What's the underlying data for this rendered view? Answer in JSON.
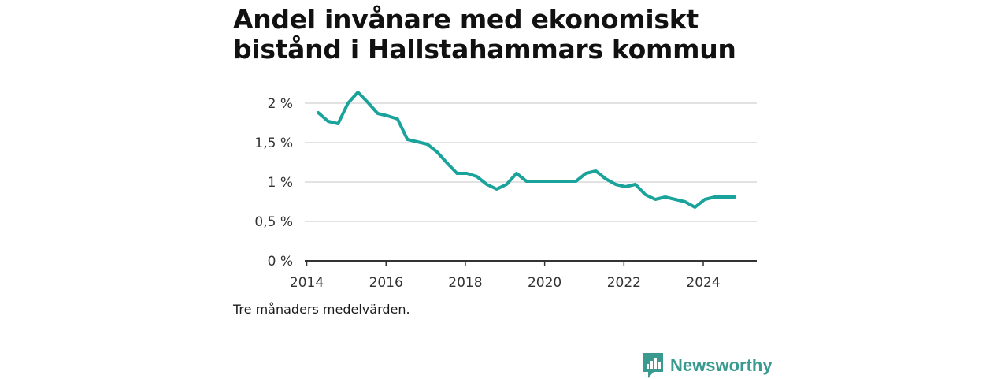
{
  "title": "Andel invånare med ekonomiskt bistånd i Hallstahammars kommun",
  "note": "Tre månaders medelvärden.",
  "brand": {
    "name": "Newsworthy",
    "icon": "newsworthy-logo-icon",
    "color": "#3a9a90"
  },
  "chart_data": {
    "type": "line",
    "title": "Andel invånare med ekonomiskt bistånd i Hallstahammars kommun",
    "xlabel": "",
    "ylabel": "",
    "xlim": [
      2013.95,
      2025.35
    ],
    "ylim": [
      0,
      2
    ],
    "x_ticks": [
      2014,
      2016,
      2018,
      2020,
      2022,
      2024
    ],
    "x_tick_labels": [
      "2014",
      "2016",
      "2018",
      "2020",
      "2022",
      "2024"
    ],
    "y_ticks": [
      0,
      0.5,
      1,
      1.5,
      2
    ],
    "y_tick_labels": [
      "0 %",
      "0,5 %",
      "1 %",
      "1,5 %",
      "2 %"
    ],
    "grid": true,
    "line_color": "#1aa39a",
    "series": [
      {
        "x": [
          2014.29,
          2014.54,
          2014.79,
          2015.04,
          2015.29,
          2015.54,
          2015.79,
          2016.04,
          2016.29,
          2016.54,
          2016.79,
          2017.04,
          2017.29,
          2017.54,
          2017.79,
          2018.04,
          2018.29,
          2018.54,
          2018.79,
          2019.04,
          2019.29,
          2019.54,
          2019.79,
          2020.04,
          2020.29,
          2020.54,
          2020.79,
          2021.04,
          2021.29,
          2021.54,
          2021.79,
          2022.04,
          2022.29,
          2022.54,
          2022.79,
          2023.04,
          2023.29,
          2023.54,
          2023.79,
          2024.04,
          2024.29,
          2024.54,
          2024.79
        ],
        "values": [
          1.88,
          1.77,
          1.74,
          2.0,
          2.14,
          2.01,
          1.87,
          1.84,
          1.8,
          1.54,
          1.51,
          1.48,
          1.38,
          1.24,
          1.11,
          1.11,
          1.07,
          0.97,
          0.91,
          0.97,
          1.11,
          1.01,
          1.01,
          1.01,
          1.01,
          1.01,
          1.01,
          1.11,
          1.14,
          1.04,
          0.97,
          0.94,
          0.97,
          0.84,
          0.78,
          0.81,
          0.78,
          0.75,
          0.68,
          0.78,
          0.81,
          0.81,
          0.81
        ]
      }
    ]
  }
}
